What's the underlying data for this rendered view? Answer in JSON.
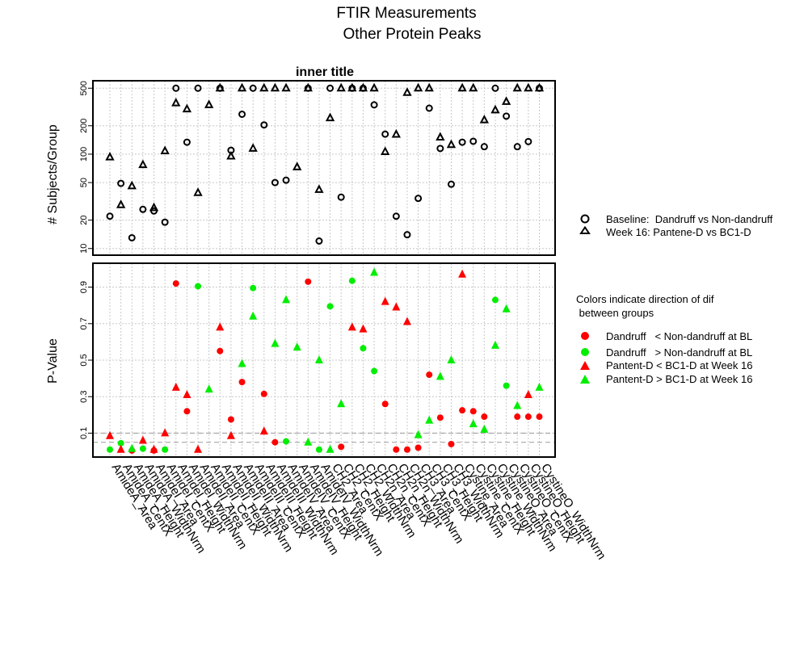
{
  "figure": {
    "title_line1": "FTIR Measurements",
    "title_line2": "Other Protein Peaks"
  },
  "chart_data": [
    {
      "type": "scatter",
      "title": "inner title",
      "ylabel": "# Subjects/Group",
      "y_scale": "log",
      "yticks": [
        10,
        20,
        50,
        100,
        200,
        500
      ],
      "ylim": [
        8.5,
        600
      ],
      "grid": true,
      "legend_placement": "right",
      "legend": [
        {
          "shape": "circle",
          "label": "Baseline:  Dandruff vs Non-dandruff"
        },
        {
          "shape": "triangle",
          "label": "Week 16: Pantene-D vs BC1-D"
        }
      ],
      "series": [
        {
          "name": "Baseline:  Dandruff vs Non-dandruff",
          "shape": "circle",
          "x": [
            1,
            2,
            3,
            4,
            5,
            6,
            7,
            8,
            9,
            11,
            12,
            13,
            14,
            15,
            16,
            17,
            19,
            20,
            21,
            22,
            23,
            24,
            25,
            26,
            27,
            28,
            29,
            30,
            31,
            32,
            33,
            34,
            35,
            36,
            37,
            38,
            39,
            40
          ],
          "values": [
            22,
            49,
            13,
            26,
            25,
            19,
            500,
            134,
            500,
            500,
            110,
            265,
            500,
            204,
            50,
            53,
            500,
            12,
            500,
            35,
            500,
            500,
            333,
            163,
            22,
            14,
            34,
            307,
            115,
            48,
            134,
            137,
            120,
            500,
            253,
            120,
            136,
            500
          ]
        },
        {
          "name": "Week 16: Pantene-D vs BC1-D",
          "shape": "triangle",
          "x": [
            1,
            2,
            3,
            4,
            5,
            6,
            7,
            8,
            9,
            10,
            11,
            12,
            13,
            14,
            15,
            16,
            17,
            18,
            19,
            20,
            21,
            22,
            23,
            24,
            25,
            26,
            27,
            28,
            29,
            30,
            31,
            32,
            33,
            34,
            35,
            36,
            37,
            38,
            39,
            40
          ],
          "values": [
            93,
            29,
            46,
            77,
            27,
            108,
            348,
            300,
            39,
            333,
            500,
            95,
            500,
            115,
            500,
            500,
            500,
            73,
            500,
            42,
            242,
            500,
            500,
            500,
            500,
            106,
            162,
            449,
            500,
            500,
            151,
            126,
            500,
            500,
            230,
            293,
            360,
            500,
            500,
            500
          ]
        }
      ]
    },
    {
      "type": "scatter",
      "ylabel": "P-Value",
      "ylim": [
        0,
        1
      ],
      "yticks": [
        0.1,
        0.3,
        0.5,
        0.7,
        0.9
      ],
      "reference_lines": [
        0.05,
        0.1
      ],
      "grid": true,
      "legend_placement": "right",
      "legend_note_line1": "Colors indicate direction of dif",
      "legend_note_line2": " between groups",
      "legend": [
        {
          "shape": "circle",
          "color": "#ff0000",
          "label": "Dandruff   < Non-dandruff at BL"
        },
        {
          "shape": "circle",
          "color": "#00ee00",
          "label": "Dandruff   > Non-dandruff at BL"
        },
        {
          "shape": "triangle",
          "color": "#ff0000",
          "label": "Pantent-D < BC1-D at Week 16"
        },
        {
          "shape": "triangle",
          "color": "#00ee00",
          "label": "Pantent-D > BC1-D at Week 16"
        }
      ],
      "categories": [
        "AmideA_Area",
        "AmideA_CentX",
        "AmideA_Height",
        "AmideA_WidthNrm",
        "AmideI_Area",
        "AmideI_CentX",
        "AmideI_Height",
        "AmideI_WidthNrm",
        "AmideII_Area",
        "AmideII_CentX",
        "AmideII_Height",
        "AmideII_WidthNrm",
        "AmideIII_Area",
        "AmideIII_CentX",
        "AmideIII_Height",
        "AmideIII_WidthNrm",
        "AmideIV_Area",
        "AmideIV_CentX",
        "AmideIV_Height",
        "AmideIV_WidthNrm",
        "CH2_Area",
        "CH2_CentX",
        "CH2_Height",
        "CH2_WidthNrm",
        "CH2n_Area",
        "CH2n_CentX",
        "CH2n_Height",
        "CH2n_WidthNrm",
        "CH3_Area",
        "CH3_CentX",
        "CH3_Height",
        "CH3_WidthNrm",
        "Cystine_Area",
        "Cystine_CentX",
        "Cystine_Height",
        "Cystine_WidthNrm",
        "CystineO_Area",
        "CystineO_CentX",
        "CystineO_Height",
        "CystineO_WidthNrm"
      ],
      "series": [
        {
          "name": "Baseline",
          "shape": "circle",
          "x": [
            1,
            2,
            3,
            4,
            5,
            6,
            7,
            8,
            9,
            11,
            12,
            13,
            14,
            15,
            16,
            17,
            19,
            20,
            21,
            22,
            23,
            24,
            25,
            26,
            27,
            28,
            29,
            30,
            31,
            32,
            33,
            34,
            35,
            36,
            37,
            38,
            39,
            40
          ],
          "values": [
            0.01,
            0.045,
            0.005,
            0.015,
            0.005,
            0.01,
            0.92,
            0.22,
            0.905,
            0.55,
            0.175,
            0.38,
            0.895,
            0.315,
            0.05,
            0.055,
            0.93,
            0.01,
            0.795,
            0.025,
            0.935,
            0.565,
            0.44,
            0.26,
            0.01,
            0.01,
            0.02,
            0.42,
            0.185,
            0.04,
            0.225,
            0.22,
            0.19,
            0.83,
            0.36,
            0.19,
            0.19,
            0.19
          ],
          "colors": [
            "#00ee00",
            "#00ee00",
            "#ff0000",
            "#00ee00",
            "#ff0000",
            "#00ee00",
            "#ff0000",
            "#ff0000",
            "#00ee00",
            "#ff0000",
            "#ff0000",
            "#ff0000",
            "#00ee00",
            "#ff0000",
            "#ff0000",
            "#00ee00",
            "#ff0000",
            "#00ee00",
            "#00ee00",
            "#ff0000",
            "#00ee00",
            "#00ee00",
            "#00ee00",
            "#ff0000",
            "#ff0000",
            "#ff0000",
            "#ff0000",
            "#ff0000",
            "#ff0000",
            "#ff0000",
            "#ff0000",
            "#ff0000",
            "#ff0000",
            "#00ee00",
            "#00ee00",
            "#ff0000",
            "#ff0000",
            "#ff0000"
          ]
        },
        {
          "name": "Week 16",
          "shape": "triangle",
          "x": [
            1,
            2,
            3,
            4,
            5,
            6,
            7,
            8,
            9,
            10,
            11,
            12,
            13,
            14,
            15,
            16,
            17,
            18,
            19,
            20,
            21,
            22,
            23,
            24,
            25,
            26,
            27,
            28,
            29,
            30,
            31,
            32,
            33,
            34,
            35,
            36,
            37,
            38,
            39,
            40
          ],
          "values": [
            0.085,
            0.01,
            0.015,
            0.06,
            0.01,
            0.1,
            0.35,
            0.31,
            0.01,
            0.34,
            0.68,
            0.085,
            0.48,
            0.74,
            0.11,
            0.59,
            0.83,
            0.57,
            0.05,
            0.5,
            0.01,
            0.26,
            0.68,
            0.67,
            0.98,
            0.82,
            0.79,
            0.71,
            0.09,
            0.17,
            0.41,
            0.5,
            0.97,
            0.15,
            0.12,
            0.58,
            0.78,
            0.25,
            0.31,
            0.35
          ],
          "colors": [
            "#ff0000",
            "#ff0000",
            "#00ee00",
            "#ff0000",
            "#ff0000",
            "#ff0000",
            "#ff0000",
            "#ff0000",
            "#ff0000",
            "#00ee00",
            "#ff0000",
            "#ff0000",
            "#00ee00",
            "#00ee00",
            "#ff0000",
            "#00ee00",
            "#00ee00",
            "#00ee00",
            "#00ee00",
            "#00ee00",
            "#00ee00",
            "#00ee00",
            "#ff0000",
            "#ff0000",
            "#00ee00",
            "#ff0000",
            "#ff0000",
            "#ff0000",
            "#00ee00",
            "#00ee00",
            "#00ee00",
            "#00ee00",
            "#ff0000",
            "#00ee00",
            "#00ee00",
            "#00ee00",
            "#00ee00",
            "#00ee00",
            "#ff0000",
            "#00ee00"
          ]
        }
      ]
    }
  ]
}
